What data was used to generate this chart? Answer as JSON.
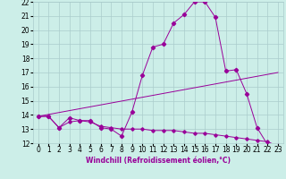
{
  "xlabel": "Windchill (Refroidissement éolien,°C)",
  "background_color": "#cceee8",
  "grid_color": "#aacccc",
  "line_color": "#990099",
  "xlim": [
    -0.5,
    23.5
  ],
  "ylim": [
    12,
    22
  ],
  "yticks": [
    12,
    13,
    14,
    15,
    16,
    17,
    18,
    19,
    20,
    21,
    22
  ],
  "xticks": [
    0,
    1,
    2,
    3,
    4,
    5,
    6,
    7,
    8,
    9,
    10,
    11,
    12,
    13,
    14,
    15,
    16,
    17,
    18,
    19,
    20,
    21,
    22,
    23
  ],
  "line1_x": [
    0,
    1,
    2,
    3,
    4,
    5,
    6,
    7,
    8,
    9,
    10,
    11,
    12,
    13,
    14,
    15,
    16,
    17,
    18,
    19,
    20,
    21,
    22,
    23
  ],
  "line1_y": [
    13.9,
    13.9,
    13.1,
    13.8,
    13.6,
    13.6,
    13.1,
    13.0,
    12.5,
    14.2,
    16.8,
    18.8,
    19.0,
    20.5,
    21.1,
    22.0,
    22.0,
    20.9,
    17.1,
    17.2,
    15.5,
    13.1,
    11.9,
    11.8
  ],
  "line2_x": [
    0,
    23
  ],
  "line2_y": [
    13.9,
    17.0
  ],
  "line3_x": [
    0,
    1,
    2,
    3,
    4,
    5,
    6,
    7,
    8,
    9,
    10,
    11,
    12,
    13,
    14,
    15,
    16,
    17,
    18,
    19,
    20,
    21,
    22,
    23
  ],
  "line3_y": [
    13.9,
    13.9,
    13.1,
    13.5,
    13.6,
    13.5,
    13.2,
    13.1,
    13.0,
    13.0,
    13.0,
    12.9,
    12.9,
    12.9,
    12.8,
    12.7,
    12.7,
    12.6,
    12.5,
    12.4,
    12.3,
    12.2,
    12.1,
    11.8
  ],
  "tick_fontsize": 5.5,
  "xlabel_fontsize": 5.5
}
